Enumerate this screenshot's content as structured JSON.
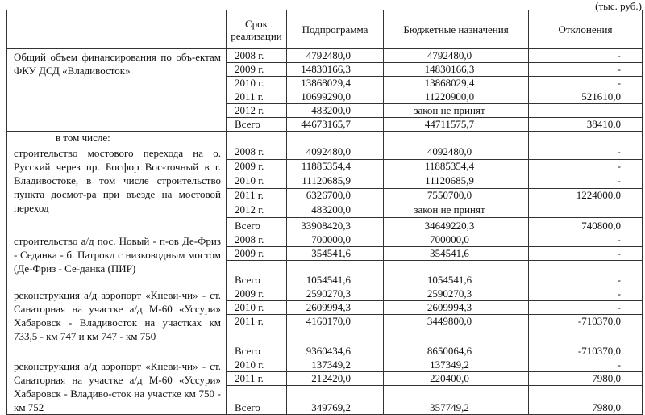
{
  "unit_note": "(тыс. руб.)",
  "headers": {
    "description": "",
    "period": "Срок реализации",
    "subprogram": "Подпрограмма",
    "budget": "Бюджетные назначения",
    "deviation": "Отклонения"
  },
  "subheading": "в том числе:",
  "groups": [
    {
      "description": "Общий объем финансирования по объ-ектам ФКУ ДСД «Владивосток»",
      "rows": [
        {
          "period": "2008 г.",
          "subprogram": "4792480,0",
          "budget": "4792480,0",
          "deviation": "-"
        },
        {
          "period": "2009 г.",
          "subprogram": "14830166,3",
          "budget": "14830166,3",
          "deviation": "-"
        },
        {
          "period": "2010 г.",
          "subprogram": "13868029,4",
          "budget": "13868029,4",
          "deviation": "-"
        },
        {
          "period": "2011 г.",
          "subprogram": "10699290,0",
          "budget": "11220900,0",
          "deviation": "521610,0"
        },
        {
          "period": "2012 г.",
          "subprogram": "483200,0",
          "budget": "закон не принят",
          "deviation": ""
        },
        {
          "period": "Всего",
          "subprogram": "44673165,7",
          "budget": "44711575,7",
          "deviation": "38410,0"
        }
      ]
    },
    {
      "description": "строительство мостового перехода на о. Русский через пр. Босфор Вос-точный в г. Владивостоке, в том числе строительство пункта досмот-ра при въезде на мостовой переход",
      "rows": [
        {
          "period": "2008 г.",
          "subprogram": "4092480,0",
          "budget": "4092480,0",
          "deviation": "-"
        },
        {
          "period": "2009 г.",
          "subprogram": "11885354,4",
          "budget": "11885354,4",
          "deviation": "-"
        },
        {
          "period": "2010 г.",
          "subprogram": "11120685,9",
          "budget": "11120685,9",
          "deviation": "-"
        },
        {
          "period": "2011 г.",
          "subprogram": "6326700,0",
          "budget": "7550700,0",
          "deviation": "1224000,0"
        },
        {
          "period": "2012 г.",
          "subprogram": "483200,0",
          "budget": "закон не принят",
          "deviation": ""
        },
        {
          "period": "Всего",
          "subprogram": "33908420,3",
          "budget": "34649220,3",
          "deviation": "740800,0"
        }
      ]
    },
    {
      "description": "строительство а/д пос. Новый - п-ов Де-Фриз - Седанка - б. Патрокл с низководным мостом (Де-Фриз - Се-данка (ПИР)",
      "rows": [
        {
          "period": "2008 г.",
          "subprogram": "700000,0",
          "budget": "700000,0",
          "deviation": "-"
        },
        {
          "period": "2009 г.",
          "subprogram": "354541,6",
          "budget": "354541,6",
          "deviation": "-"
        },
        {
          "period": "Всего",
          "subprogram": "1054541,6",
          "budget": "1054541,6",
          "deviation": "-"
        }
      ]
    },
    {
      "description": "реконструкция а/д аэропорт «Кневи-чи» - ст. Санаторная на участке а/д М-60 «Уссури» Хабаровск - Владивосток на участках км 733,5 - км 747 и км 747 - км 750",
      "rows": [
        {
          "period": "2009 г.",
          "subprogram": "2590270,3",
          "budget": "2590270,3",
          "deviation": "-"
        },
        {
          "period": "2010 г.",
          "subprogram": "2609994,3",
          "budget": "2609994,3",
          "deviation": "-"
        },
        {
          "period": "2011 г.",
          "subprogram": "4160170,0",
          "budget": "3449800,0",
          "deviation": "-710370,0"
        },
        {
          "period": "Всего",
          "subprogram": "9360434,6",
          "budget": "8650064,6",
          "deviation": "-710370,0"
        }
      ]
    },
    {
      "description": "реконструкция а/д аэропорт «Кневи-чи» - ст. Санаторная на участке а/д М-60 «Уссури» Хабаровск - Владиво-сток на участке км 750 - км 752",
      "rows": [
        {
          "period": "2010 г.",
          "subprogram": "137349,2",
          "budget": "137349,2",
          "deviation": "-"
        },
        {
          "period": "2011 г.",
          "subprogram": "212420,0",
          "budget": "220400,0",
          "deviation": "7980,0"
        },
        {
          "period": "Всего",
          "subprogram": "349769,2",
          "budget": "357749,2",
          "deviation": "7980,0"
        }
      ]
    }
  ]
}
